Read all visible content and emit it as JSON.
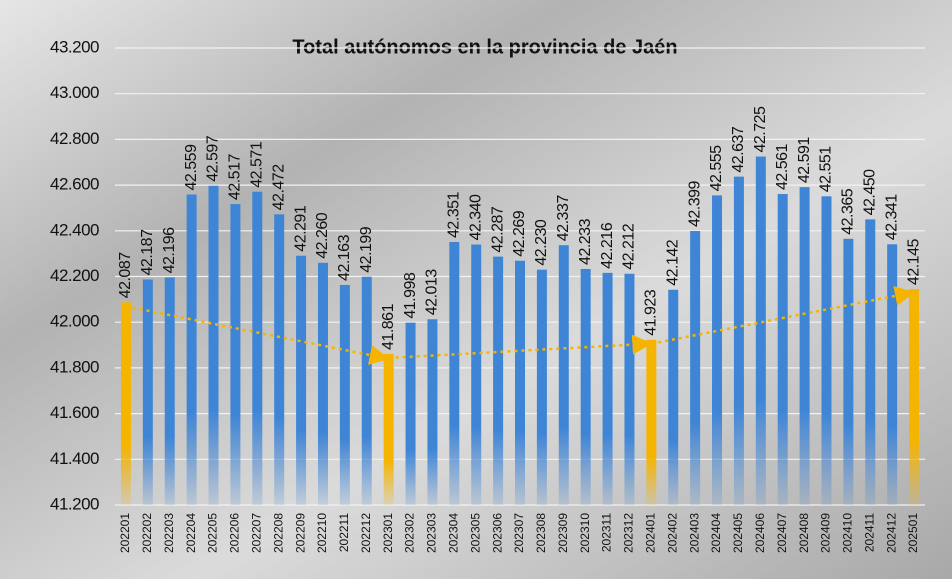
{
  "chart_data": {
    "type": "bar",
    "title": "Total autónomos en la provincia de Jaén",
    "categories": [
      "202201",
      "202202",
      "202203",
      "202204",
      "202205",
      "202206",
      "202207",
      "202208",
      "202209",
      "202210",
      "202211",
      "202212",
      "202301",
      "202302",
      "202303",
      "202304",
      "202305",
      "202306",
      "202307",
      "202308",
      "202309",
      "202310",
      "202311",
      "202312",
      "202401",
      "202402",
      "202403",
      "202404",
      "202405",
      "202406",
      "202407",
      "202408",
      "202409",
      "202410",
      "202411",
      "202412",
      "202501"
    ],
    "values": [
      42087,
      42187,
      42196,
      42559,
      42597,
      42517,
      42571,
      42472,
      42291,
      42260,
      42163,
      42199,
      41861,
      41998,
      42013,
      42351,
      42340,
      42287,
      42269,
      42230,
      42337,
      42233,
      42216,
      42212,
      41923,
      42142,
      42399,
      42555,
      42637,
      42725,
      42561,
      42591,
      42551,
      42365,
      42450,
      42341,
      42145
    ],
    "value_labels": [
      "42.087",
      "42.187",
      "42.196",
      "42.559",
      "42.597",
      "42.517",
      "42.571",
      "42.472",
      "42.291",
      "42.260",
      "42.163",
      "42.199",
      "41.861",
      "41.998",
      "42.013",
      "42.351",
      "42.340",
      "42.287",
      "42.269",
      "42.230",
      "42.337",
      "42.233",
      "42.216",
      "42.212",
      "41.923",
      "42.142",
      "42.399",
      "42.555",
      "42.637",
      "42.725",
      "42.561",
      "42.591",
      "42.551",
      "42.365",
      "42.450",
      "42.341",
      "42.145"
    ],
    "colors": [
      "#f5b400",
      "#3f85d6",
      "#3f85d6",
      "#3f85d6",
      "#3f85d6",
      "#3f85d6",
      "#3f85d6",
      "#3f85d6",
      "#3f85d6",
      "#3f85d6",
      "#3f85d6",
      "#3f85d6",
      "#f5b400",
      "#3f85d6",
      "#3f85d6",
      "#3f85d6",
      "#3f85d6",
      "#3f85d6",
      "#3f85d6",
      "#3f85d6",
      "#3f85d6",
      "#3f85d6",
      "#3f85d6",
      "#3f85d6",
      "#f5b400",
      "#3f85d6",
      "#3f85d6",
      "#3f85d6",
      "#3f85d6",
      "#3f85d6",
      "#3f85d6",
      "#3f85d6",
      "#3f85d6",
      "#3f85d6",
      "#3f85d6",
      "#3f85d6",
      "#f5b400"
    ],
    "ylim": [
      41200,
      43200
    ],
    "yticks": [
      {
        "value": 41200,
        "label": "41.200"
      },
      {
        "value": 41400,
        "label": "41.400"
      },
      {
        "value": 41600,
        "label": "41.600"
      },
      {
        "value": 41800,
        "label": "41.800"
      },
      {
        "value": 42000,
        "label": "42.000"
      },
      {
        "value": 42200,
        "label": "42.200"
      },
      {
        "value": 42400,
        "label": "42.400"
      },
      {
        "value": 42600,
        "label": "42.600"
      },
      {
        "value": 42800,
        "label": "42.800"
      },
      {
        "value": 43000,
        "label": "43.000"
      },
      {
        "value": 43200,
        "label": "43.200"
      }
    ],
    "grid": true
  }
}
